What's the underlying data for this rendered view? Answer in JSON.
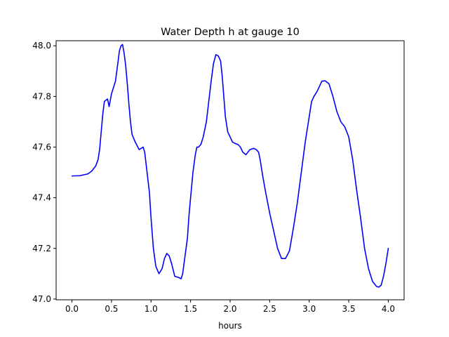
{
  "chart_data": {
    "type": "line",
    "title": "Water Depth h at gauge 10",
    "xlabel": "hours",
    "ylabel": "",
    "xlim": [
      -0.2,
      4.2
    ],
    "ylim": [
      46.997,
      48.02
    ],
    "xticks": [
      0.0,
      0.5,
      1.0,
      1.5,
      2.0,
      2.5,
      3.0,
      3.5,
      4.0
    ],
    "xtick_labels": [
      "0.0",
      "0.5",
      "1.0",
      "1.5",
      "2.0",
      "2.5",
      "3.0",
      "3.5",
      "4.0"
    ],
    "yticks": [
      47.0,
      47.2,
      47.4,
      47.6,
      47.8,
      48.0
    ],
    "ytick_labels": [
      "47.0",
      "47.2",
      "47.4",
      "47.6",
      "47.8",
      "48.0"
    ],
    "grid": false,
    "legend": "none",
    "series": [
      {
        "color": "#0000ff",
        "points": [
          [
            0.0,
            47.486
          ],
          [
            0.1,
            47.487
          ],
          [
            0.2,
            47.494
          ],
          [
            0.25,
            47.505
          ],
          [
            0.3,
            47.525
          ],
          [
            0.33,
            47.55
          ],
          [
            0.35,
            47.59
          ],
          [
            0.37,
            47.66
          ],
          [
            0.39,
            47.73
          ],
          [
            0.41,
            47.78
          ],
          [
            0.43,
            47.785
          ],
          [
            0.45,
            47.79
          ],
          [
            0.47,
            47.76
          ],
          [
            0.5,
            47.81
          ],
          [
            0.55,
            47.86
          ],
          [
            0.58,
            47.93
          ],
          [
            0.6,
            47.98
          ],
          [
            0.62,
            48.0
          ],
          [
            0.64,
            48.005
          ],
          [
            0.66,
            47.97
          ],
          [
            0.68,
            47.92
          ],
          [
            0.7,
            47.85
          ],
          [
            0.72,
            47.77
          ],
          [
            0.74,
            47.7
          ],
          [
            0.76,
            47.65
          ],
          [
            0.8,
            47.62
          ],
          [
            0.85,
            47.59
          ],
          [
            0.9,
            47.6
          ],
          [
            0.92,
            47.58
          ],
          [
            0.95,
            47.5
          ],
          [
            0.98,
            47.42
          ],
          [
            1.0,
            47.32
          ],
          [
            1.03,
            47.2
          ],
          [
            1.06,
            47.13
          ],
          [
            1.1,
            47.1
          ],
          [
            1.14,
            47.12
          ],
          [
            1.17,
            47.16
          ],
          [
            1.2,
            47.18
          ],
          [
            1.23,
            47.17
          ],
          [
            1.26,
            47.14
          ],
          [
            1.3,
            47.09
          ],
          [
            1.35,
            47.085
          ],
          [
            1.38,
            47.08
          ],
          [
            1.4,
            47.1
          ],
          [
            1.43,
            47.17
          ],
          [
            1.46,
            47.24
          ],
          [
            1.48,
            47.33
          ],
          [
            1.5,
            47.4
          ],
          [
            1.53,
            47.5
          ],
          [
            1.56,
            47.57
          ],
          [
            1.58,
            47.6
          ],
          [
            1.6,
            47.6
          ],
          [
            1.63,
            47.61
          ],
          [
            1.66,
            47.64
          ],
          [
            1.7,
            47.7
          ],
          [
            1.73,
            47.78
          ],
          [
            1.76,
            47.86
          ],
          [
            1.79,
            47.93
          ],
          [
            1.82,
            47.965
          ],
          [
            1.85,
            47.96
          ],
          [
            1.88,
            47.94
          ],
          [
            1.9,
            47.88
          ],
          [
            1.92,
            47.8
          ],
          [
            1.94,
            47.72
          ],
          [
            1.97,
            47.66
          ],
          [
            2.0,
            47.64
          ],
          [
            2.03,
            47.62
          ],
          [
            2.06,
            47.615
          ],
          [
            2.1,
            47.61
          ],
          [
            2.13,
            47.6
          ],
          [
            2.16,
            47.58
          ],
          [
            2.2,
            47.57
          ],
          [
            2.25,
            47.59
          ],
          [
            2.3,
            47.595
          ],
          [
            2.33,
            47.59
          ],
          [
            2.36,
            47.58
          ],
          [
            2.38,
            47.55
          ],
          [
            2.41,
            47.49
          ],
          [
            2.45,
            47.42
          ],
          [
            2.5,
            47.34
          ],
          [
            2.55,
            47.27
          ],
          [
            2.6,
            47.2
          ],
          [
            2.65,
            47.16
          ],
          [
            2.7,
            47.16
          ],
          [
            2.75,
            47.19
          ],
          [
            2.8,
            47.28
          ],
          [
            2.85,
            47.38
          ],
          [
            2.9,
            47.5
          ],
          [
            2.95,
            47.62
          ],
          [
            3.0,
            47.72
          ],
          [
            3.03,
            47.78
          ],
          [
            3.06,
            47.8
          ],
          [
            3.1,
            47.82
          ],
          [
            3.13,
            47.84
          ],
          [
            3.16,
            47.86
          ],
          [
            3.2,
            47.862
          ],
          [
            3.25,
            47.85
          ],
          [
            3.3,
            47.8
          ],
          [
            3.35,
            47.74
          ],
          [
            3.4,
            47.7
          ],
          [
            3.45,
            47.68
          ],
          [
            3.5,
            47.64
          ],
          [
            3.55,
            47.55
          ],
          [
            3.6,
            47.43
          ],
          [
            3.65,
            47.32
          ],
          [
            3.7,
            47.2
          ],
          [
            3.75,
            47.12
          ],
          [
            3.8,
            47.07
          ],
          [
            3.85,
            47.05
          ],
          [
            3.88,
            47.047
          ],
          [
            3.91,
            47.055
          ],
          [
            3.94,
            47.09
          ],
          [
            3.97,
            47.14
          ],
          [
            4.0,
            47.2
          ]
        ]
      }
    ]
  }
}
